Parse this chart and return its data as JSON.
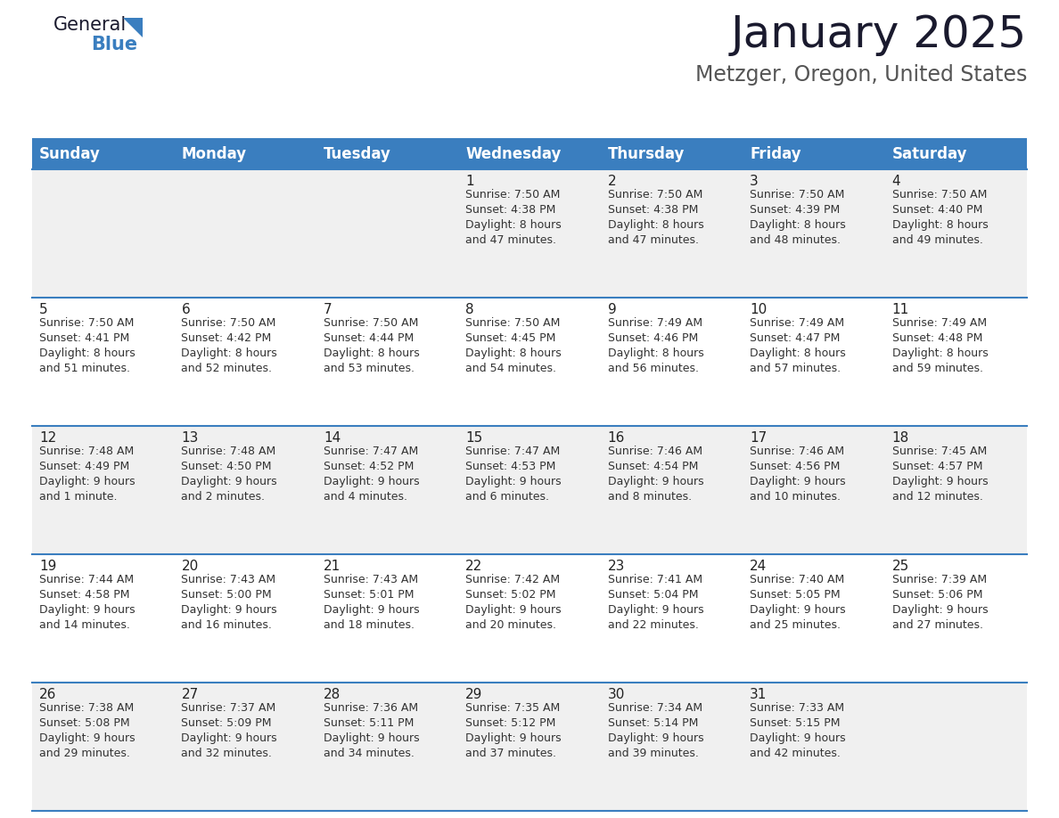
{
  "title": "January 2025",
  "subtitle": "Metzger, Oregon, United States",
  "header_bg": "#3a7ebf",
  "header_text_color": "#ffffff",
  "cell_bg_odd": "#f0f0f0",
  "cell_bg_even": "#ffffff",
  "border_color": "#3a7ebf",
  "text_color": "#333333",
  "day_num_color": "#222222",
  "day_headers": [
    "Sunday",
    "Monday",
    "Tuesday",
    "Wednesday",
    "Thursday",
    "Friday",
    "Saturday"
  ],
  "weeks": [
    [
      {
        "day": "",
        "info": ""
      },
      {
        "day": "",
        "info": ""
      },
      {
        "day": "",
        "info": ""
      },
      {
        "day": "1",
        "info": "Sunrise: 7:50 AM\nSunset: 4:38 PM\nDaylight: 8 hours\nand 47 minutes."
      },
      {
        "day": "2",
        "info": "Sunrise: 7:50 AM\nSunset: 4:38 PM\nDaylight: 8 hours\nand 47 minutes."
      },
      {
        "day": "3",
        "info": "Sunrise: 7:50 AM\nSunset: 4:39 PM\nDaylight: 8 hours\nand 48 minutes."
      },
      {
        "day": "4",
        "info": "Sunrise: 7:50 AM\nSunset: 4:40 PM\nDaylight: 8 hours\nand 49 minutes."
      }
    ],
    [
      {
        "day": "5",
        "info": "Sunrise: 7:50 AM\nSunset: 4:41 PM\nDaylight: 8 hours\nand 51 minutes."
      },
      {
        "day": "6",
        "info": "Sunrise: 7:50 AM\nSunset: 4:42 PM\nDaylight: 8 hours\nand 52 minutes."
      },
      {
        "day": "7",
        "info": "Sunrise: 7:50 AM\nSunset: 4:44 PM\nDaylight: 8 hours\nand 53 minutes."
      },
      {
        "day": "8",
        "info": "Sunrise: 7:50 AM\nSunset: 4:45 PM\nDaylight: 8 hours\nand 54 minutes."
      },
      {
        "day": "9",
        "info": "Sunrise: 7:49 AM\nSunset: 4:46 PM\nDaylight: 8 hours\nand 56 minutes."
      },
      {
        "day": "10",
        "info": "Sunrise: 7:49 AM\nSunset: 4:47 PM\nDaylight: 8 hours\nand 57 minutes."
      },
      {
        "day": "11",
        "info": "Sunrise: 7:49 AM\nSunset: 4:48 PM\nDaylight: 8 hours\nand 59 minutes."
      }
    ],
    [
      {
        "day": "12",
        "info": "Sunrise: 7:48 AM\nSunset: 4:49 PM\nDaylight: 9 hours\nand 1 minute."
      },
      {
        "day": "13",
        "info": "Sunrise: 7:48 AM\nSunset: 4:50 PM\nDaylight: 9 hours\nand 2 minutes."
      },
      {
        "day": "14",
        "info": "Sunrise: 7:47 AM\nSunset: 4:52 PM\nDaylight: 9 hours\nand 4 minutes."
      },
      {
        "day": "15",
        "info": "Sunrise: 7:47 AM\nSunset: 4:53 PM\nDaylight: 9 hours\nand 6 minutes."
      },
      {
        "day": "16",
        "info": "Sunrise: 7:46 AM\nSunset: 4:54 PM\nDaylight: 9 hours\nand 8 minutes."
      },
      {
        "day": "17",
        "info": "Sunrise: 7:46 AM\nSunset: 4:56 PM\nDaylight: 9 hours\nand 10 minutes."
      },
      {
        "day": "18",
        "info": "Sunrise: 7:45 AM\nSunset: 4:57 PM\nDaylight: 9 hours\nand 12 minutes."
      }
    ],
    [
      {
        "day": "19",
        "info": "Sunrise: 7:44 AM\nSunset: 4:58 PM\nDaylight: 9 hours\nand 14 minutes."
      },
      {
        "day": "20",
        "info": "Sunrise: 7:43 AM\nSunset: 5:00 PM\nDaylight: 9 hours\nand 16 minutes."
      },
      {
        "day": "21",
        "info": "Sunrise: 7:43 AM\nSunset: 5:01 PM\nDaylight: 9 hours\nand 18 minutes."
      },
      {
        "day": "22",
        "info": "Sunrise: 7:42 AM\nSunset: 5:02 PM\nDaylight: 9 hours\nand 20 minutes."
      },
      {
        "day": "23",
        "info": "Sunrise: 7:41 AM\nSunset: 5:04 PM\nDaylight: 9 hours\nand 22 minutes."
      },
      {
        "day": "24",
        "info": "Sunrise: 7:40 AM\nSunset: 5:05 PM\nDaylight: 9 hours\nand 25 minutes."
      },
      {
        "day": "25",
        "info": "Sunrise: 7:39 AM\nSunset: 5:06 PM\nDaylight: 9 hours\nand 27 minutes."
      }
    ],
    [
      {
        "day": "26",
        "info": "Sunrise: 7:38 AM\nSunset: 5:08 PM\nDaylight: 9 hours\nand 29 minutes."
      },
      {
        "day": "27",
        "info": "Sunrise: 7:37 AM\nSunset: 5:09 PM\nDaylight: 9 hours\nand 32 minutes."
      },
      {
        "day": "28",
        "info": "Sunrise: 7:36 AM\nSunset: 5:11 PM\nDaylight: 9 hours\nand 34 minutes."
      },
      {
        "day": "29",
        "info": "Sunrise: 7:35 AM\nSunset: 5:12 PM\nDaylight: 9 hours\nand 37 minutes."
      },
      {
        "day": "30",
        "info": "Sunrise: 7:34 AM\nSunset: 5:14 PM\nDaylight: 9 hours\nand 39 minutes."
      },
      {
        "day": "31",
        "info": "Sunrise: 7:33 AM\nSunset: 5:15 PM\nDaylight: 9 hours\nand 42 minutes."
      },
      {
        "day": "",
        "info": ""
      }
    ]
  ],
  "title_fontsize": 36,
  "subtitle_fontsize": 17,
  "header_fontsize": 12,
  "day_num_fontsize": 11,
  "info_fontsize": 9,
  "logo_general_fontsize": 15,
  "logo_blue_fontsize": 15
}
